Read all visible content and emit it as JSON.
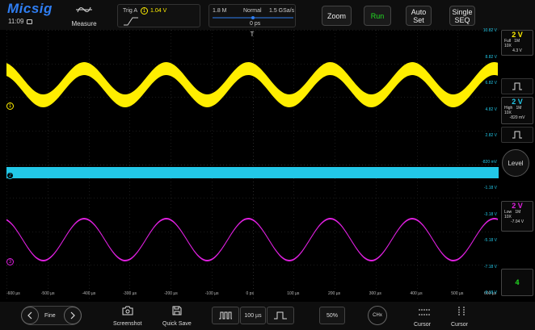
{
  "header": {
    "logo": "Micsig",
    "clock": "11:09",
    "measure_label": "Measure",
    "trigger": {
      "label": "Trig  A",
      "channel": "1",
      "level": "1.04 V"
    },
    "acquire": {
      "memory": "1.8 M",
      "mode": "Normal",
      "rate": "1.5 GSa/s",
      "offset": "0 ps"
    },
    "buttons": {
      "zoom": "Zoom",
      "run": "Run",
      "auto_set": "Auto\nSet",
      "single": "Single\nSEQ"
    }
  },
  "plot": {
    "x_ticks": [
      "-600 µs",
      "-500 µs",
      "-400 µs",
      "-300 µs",
      "-200 µs",
      "-100 µs",
      "0 ps",
      "100 µs",
      "200 µs",
      "300 µs",
      "400 µs",
      "500 µs",
      "600 µs"
    ],
    "right_labels": [
      "10.82 V",
      "8.82 V",
      "6.82 V",
      "4.82 V",
      "2.82 V",
      "-820 mV",
      "-1.18 V",
      "-3.18 V",
      "-5.18 V",
      "-7.18 V",
      "-9.18 V"
    ],
    "channel_markers": [
      "1",
      "2",
      "3"
    ],
    "trigger_marker": "T"
  },
  "channels": [
    {
      "id": "ch1",
      "scale": "2 V",
      "bw": "Full",
      "imp": "1M",
      "probe": "10X",
      "offset": "4.3 V",
      "color": "#ffee00"
    },
    {
      "id": "ch2",
      "scale": "2 V",
      "bw": "High",
      "imp": "1M",
      "probe": "10X",
      "offset": "-820 mV",
      "color": "#22c8e8"
    },
    {
      "id": "ch3",
      "scale": "2 V",
      "bw": "Low",
      "imp": "1M",
      "probe": "10X",
      "offset": "-7.04 V",
      "color": "#e020e0"
    }
  ],
  "right_panel": {
    "level_label": "Level",
    "ch4_label": "4",
    "ch4_color": "#22dd22"
  },
  "footer": {
    "fine_label": "Fine",
    "screenshot_label": "Screenshot",
    "quick_save_label": "Quick Save",
    "timebase": "100 µs",
    "duty": "50%",
    "chx_label": "CHx",
    "cursor1_label": "Cursor",
    "cursor2_label": "Cursor"
  }
}
